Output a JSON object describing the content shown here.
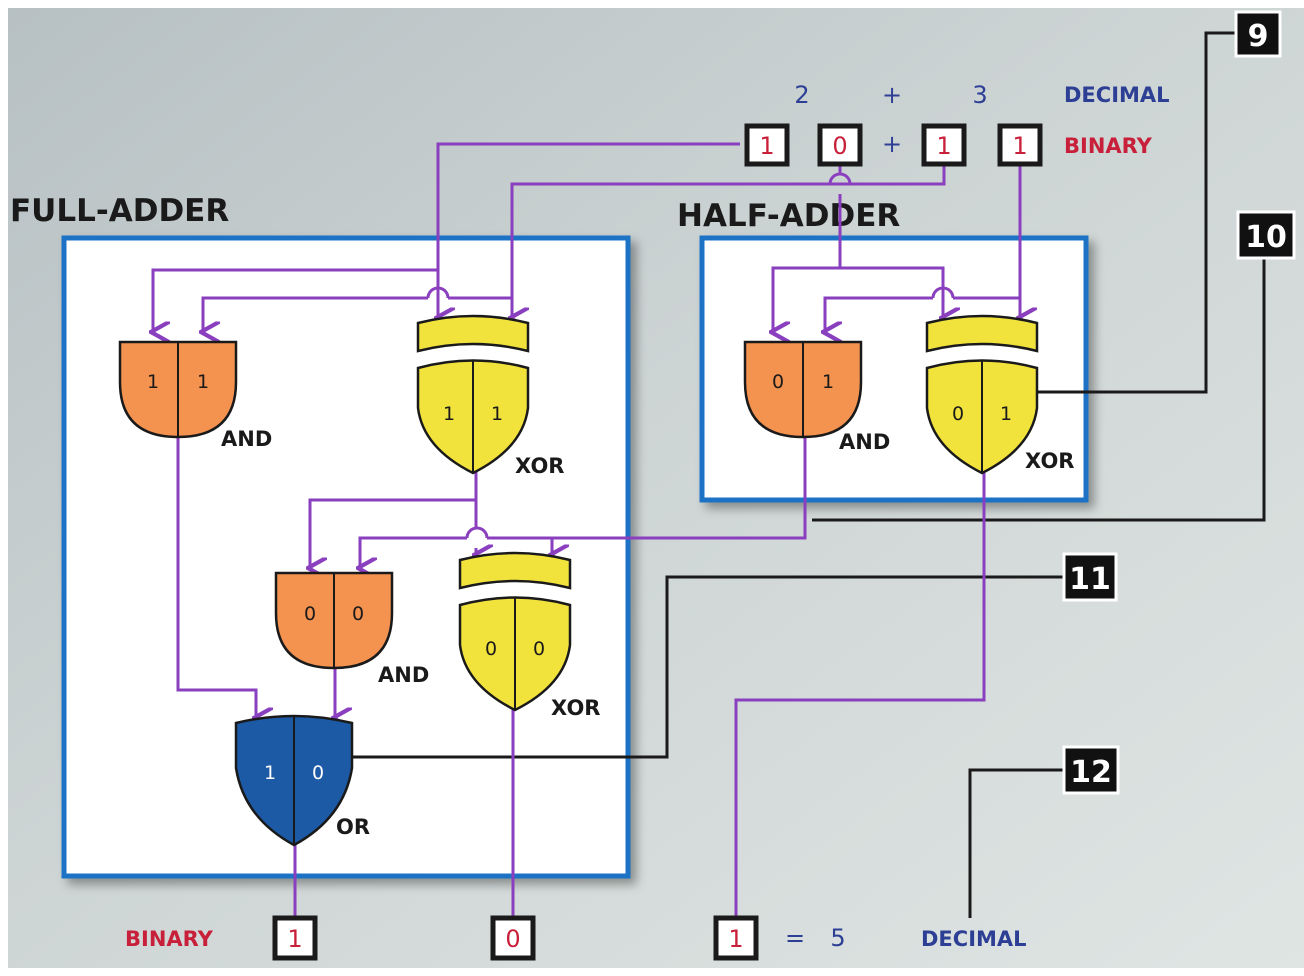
{
  "colors": {
    "wire_purple": "#8a3fbf",
    "wire_black": "#1a1a1a",
    "and_gate": "#f4924f",
    "xor_gate": "#f2e23c",
    "or_gate": "#1d5aa6",
    "box_border": "#1a73c6",
    "decimal_text": "#2d3f95",
    "binary_text": "#c8203a",
    "digit_red": "#c8203a"
  },
  "titles": {
    "full_adder": "FULL-ADDER",
    "half_adder": "HALF-ADDER"
  },
  "top_equation": {
    "decimal_a": "2",
    "plus": "+",
    "decimal_b": "3",
    "decimal_label": "DECIMAL",
    "bits_a": [
      "1",
      "0"
    ],
    "bits_b": [
      "1",
      "1"
    ],
    "binary_label": "BINARY"
  },
  "half_adder": {
    "and_inputs": [
      "0",
      "1"
    ],
    "and_label": "AND",
    "xor_inputs": [
      "0",
      "1"
    ],
    "xor_label": "XOR"
  },
  "full_adder": {
    "and1_inputs": [
      "1",
      "1"
    ],
    "and1_label": "AND",
    "xor1_inputs": [
      "1",
      "1"
    ],
    "xor1_label": "XOR",
    "and2_inputs": [
      "0",
      "0"
    ],
    "and2_label": "AND",
    "xor2_inputs": [
      "0",
      "0"
    ],
    "xor2_label": "XOR",
    "or_inputs": [
      "1",
      "0"
    ],
    "or_label": "OR"
  },
  "callouts": [
    "9",
    "10",
    "11",
    "12"
  ],
  "result": {
    "binary_label": "BINARY",
    "bits": [
      "1",
      "0",
      "1"
    ],
    "equals": "=",
    "decimal_value": "5",
    "decimal_label": "DECIMAL"
  }
}
